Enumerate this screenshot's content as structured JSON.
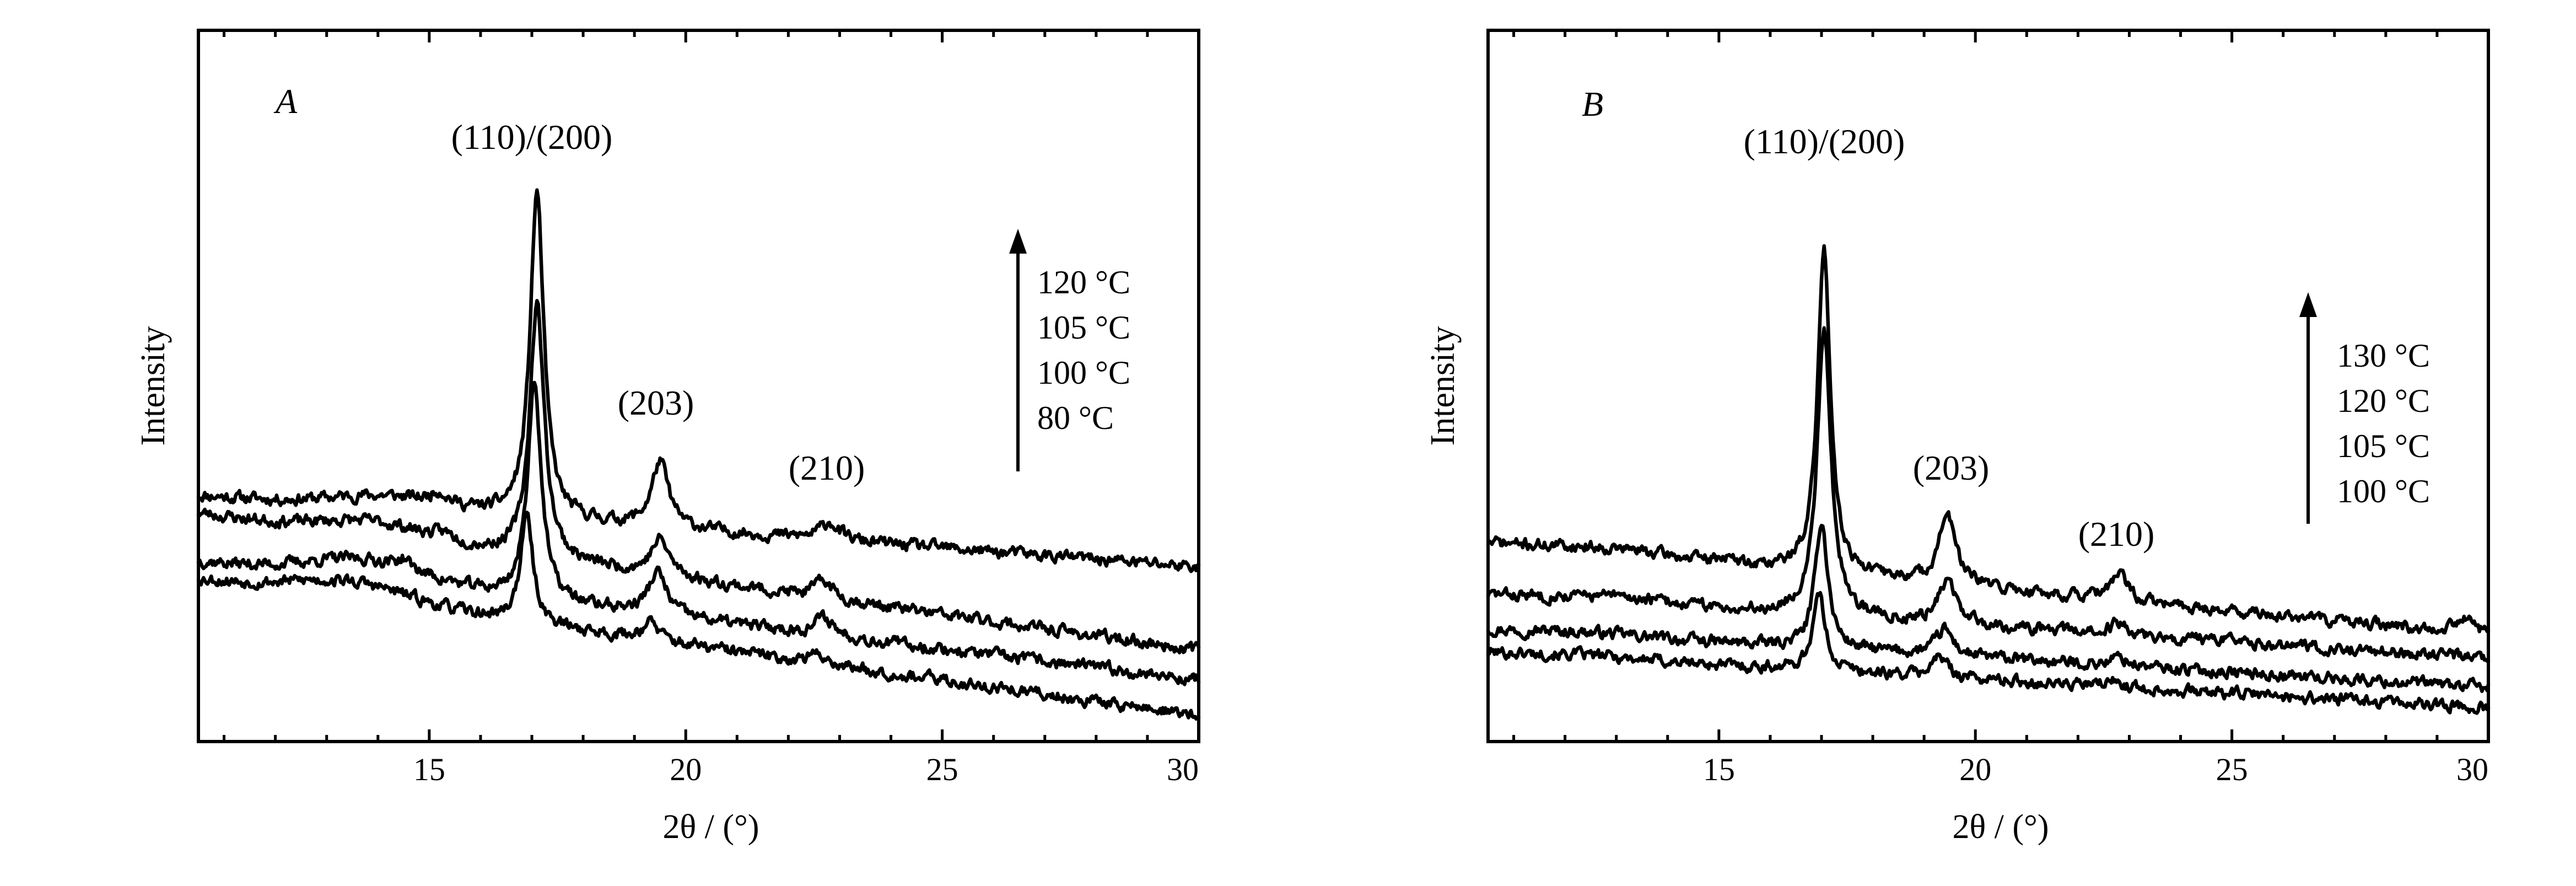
{
  "chart_data": [
    {
      "type": "line",
      "panel_label": "A",
      "xlabel": "2θ / (°)",
      "ylabel": "Intensity",
      "xlim": [
        10.5,
        30
      ],
      "xticks": [
        15,
        20,
        25,
        30
      ],
      "y_ticks_shown": false,
      "ylim": [
        0,
        10
      ],
      "grid": false,
      "peak_labels": [
        {
          "text": "(110)/(200)",
          "x": 17.0
        },
        {
          "text": "(203)",
          "x": 19.5
        },
        {
          "text": "(210)",
          "x": 22.8
        }
      ],
      "legend": {
        "entries": [
          "120 °C",
          "105 °C",
          "100 °C",
          "80 °C"
        ],
        "direction": "arrow pointing up",
        "placement": "right"
      },
      "series": [
        {
          "name": "120 °C",
          "base_start": 4.0,
          "base_end": 2.8,
          "peaks": [
            [
              17.1,
              5.5,
              0.16
            ],
            [
              19.5,
              1.1,
              0.2
            ],
            [
              22.8,
              0.3,
              0.22
            ],
            [
              15.2,
              0.2,
              0.2
            ]
          ],
          "hump": [
            14.2,
            0.2,
            1.5
          ],
          "seed": 11
        },
        {
          "name": "105 °C",
          "base_start": 3.7,
          "base_end": 1.4,
          "peaks": [
            [
              17.1,
              4.3,
              0.17
            ],
            [
              19.5,
              0.6,
              0.22
            ],
            [
              22.7,
              0.3,
              0.22
            ],
            [
              15.3,
              0.1,
              0.2
            ]
          ],
          "hump": [
            14.0,
            0.25,
            1.5
          ],
          "seed": 23
        },
        {
          "name": "100 °C",
          "base_start": 2.9,
          "base_end": 0.9,
          "peaks": [
            [
              17.05,
              3.7,
              0.16
            ],
            [
              19.45,
              0.7,
              0.22
            ],
            [
              22.7,
              0.3,
              0.22
            ],
            [
              14.5,
              0.15,
              0.15
            ]
          ],
          "hump": [
            13.8,
            0.35,
            1.6
          ],
          "seed": 37
        },
        {
          "name": "80 °C",
          "base_start": 2.6,
          "base_end": 0.3,
          "peaks": [
            [
              16.9,
              1.8,
              0.15
            ],
            [
              19.3,
              0.3,
              0.2
            ],
            [
              22.6,
              0.15,
              0.22
            ]
          ],
          "hump": [
            13.5,
            0.3,
            1.6
          ],
          "seed": 53
        }
      ]
    },
    {
      "type": "line",
      "panel_label": "B",
      "xlabel": "2θ / (°)",
      "ylabel": "Intensity",
      "xlim": [
        10.5,
        30
      ],
      "xticks": [
        15,
        20,
        25,
        30
      ],
      "y_ticks_shown": false,
      "ylim": [
        0,
        10
      ],
      "grid": false,
      "peak_labels": [
        {
          "text": "(110)/(200)",
          "x": 17.0
        },
        {
          "text": "(203)",
          "x": 19.5
        },
        {
          "text": "(210)",
          "x": 22.8
        }
      ],
      "legend": {
        "entries": [
          "130 °C",
          "120 °C",
          "105 °C",
          "100 °C"
        ],
        "direction": "arrow pointing up",
        "placement": "right"
      },
      "series": [
        {
          "name": "130 °C",
          "base_start": 3.2,
          "base_end": 1.6,
          "peaks": [
            [
              17.05,
              5.6,
              0.15
            ],
            [
              19.45,
              1.2,
              0.2
            ],
            [
              22.8,
              0.45,
              0.2
            ],
            [
              15.1,
              0.1,
              0.15
            ],
            [
              29.5,
              0.25,
              0.25
            ]
          ],
          "hump": [
            13.0,
            0.1,
            1.5
          ],
          "seed": 71
        },
        {
          "name": "120 °C",
          "base_start": 2.3,
          "base_end": 1.2,
          "peaks": [
            [
              17.05,
              5.0,
              0.16
            ],
            [
              19.45,
              0.75,
              0.2
            ],
            [
              22.8,
              0.2,
              0.2
            ]
          ],
          "hump": [
            13.0,
            0.1,
            1.5
          ],
          "seed": 83
        },
        {
          "name": "105 °C",
          "base_start": 1.7,
          "base_end": 0.7,
          "peaks": [
            [
              17.0,
              2.2,
              0.15
            ],
            [
              19.4,
              0.45,
              0.2
            ],
            [
              22.8,
              0.15,
              0.2
            ]
          ],
          "hump": [
            12.5,
            0.05,
            1.5
          ],
          "seed": 97
        },
        {
          "name": "100 °C",
          "base_start": 1.3,
          "base_end": 0.35,
          "peaks": [
            [
              16.95,
              1.3,
              0.15
            ],
            [
              19.3,
              0.35,
              0.2
            ],
            [
              22.7,
              0.1,
              0.2
            ]
          ],
          "hump": [
            12.5,
            0.05,
            1.5
          ],
          "seed": 101
        }
      ]
    }
  ]
}
